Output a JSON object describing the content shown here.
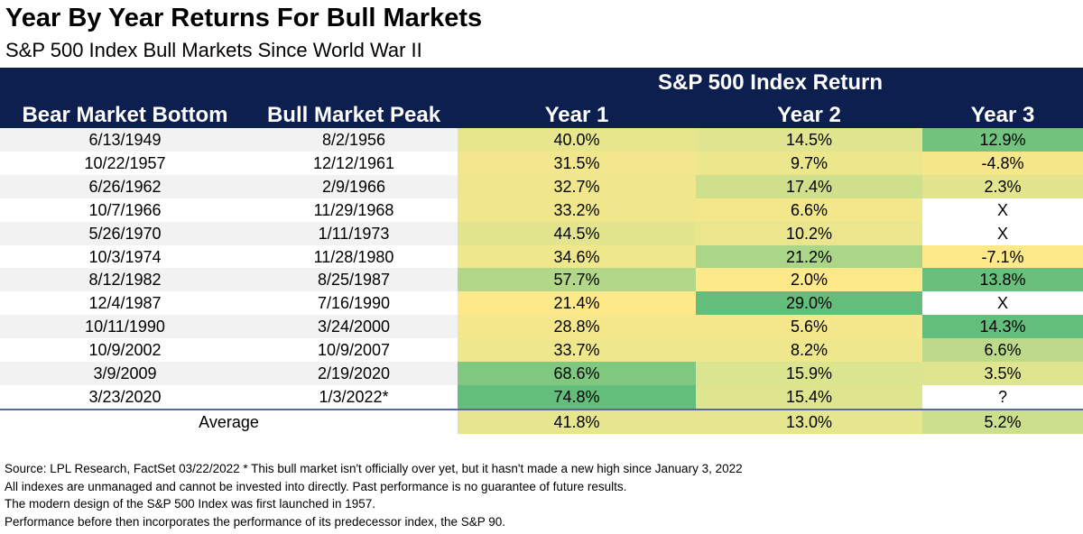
{
  "title": "Year By Year Returns For Bull Markets",
  "subtitle": "S&P 500 Index Bull Markets Since World War II",
  "header": {
    "group_label": "S&P 500 Index Return",
    "columns": [
      "Bear Market Bottom",
      "Bull Market Peak",
      "Year 1",
      "Year 2",
      "Year 3"
    ]
  },
  "chart_data": {
    "type": "table",
    "title": "Year By Year Returns For Bull Markets",
    "subtitle": "S&P 500 Index Bull Markets Since World War II",
    "columns": [
      "Bear Market Bottom",
      "Bull Market Peak",
      "Year 1",
      "Year 2",
      "Year 3"
    ],
    "rows": [
      {
        "bottom": "6/13/1949",
        "peak": "8/2/1956",
        "y1": "40.0%",
        "y2": "14.5%",
        "y3": "12.9%"
      },
      {
        "bottom": "10/22/1957",
        "peak": "12/12/1961",
        "y1": "31.5%",
        "y2": "9.7%",
        "y3": "-4.8%"
      },
      {
        "bottom": "6/26/1962",
        "peak": "2/9/1966",
        "y1": "32.7%",
        "y2": "17.4%",
        "y3": "2.3%"
      },
      {
        "bottom": "10/7/1966",
        "peak": "11/29/1968",
        "y1": "33.2%",
        "y2": "6.6%",
        "y3": "X"
      },
      {
        "bottom": "5/26/1970",
        "peak": "1/11/1973",
        "y1": "44.5%",
        "y2": "10.2%",
        "y3": "X"
      },
      {
        "bottom": "10/3/1974",
        "peak": "11/28/1980",
        "y1": "34.6%",
        "y2": "21.2%",
        "y3": "-7.1%"
      },
      {
        "bottom": "8/12/1982",
        "peak": "8/25/1987",
        "y1": "57.7%",
        "y2": "2.0%",
        "y3": "13.8%"
      },
      {
        "bottom": "12/4/1987",
        "peak": "7/16/1990",
        "y1": "21.4%",
        "y2": "29.0%",
        "y3": "X"
      },
      {
        "bottom": "10/11/1990",
        "peak": "3/24/2000",
        "y1": "28.8%",
        "y2": "5.6%",
        "y3": "14.3%"
      },
      {
        "bottom": "10/9/2002",
        "peak": "10/9/2007",
        "y1": "33.7%",
        "y2": "8.2%",
        "y3": "6.6%"
      },
      {
        "bottom": "3/9/2009",
        "peak": "2/19/2020",
        "y1": "68.6%",
        "y2": "15.9%",
        "y3": "3.5%"
      },
      {
        "bottom": "3/23/2020",
        "peak": "1/3/2022*",
        "y1": "74.8%",
        "y2": "15.4%",
        "y3": "?"
      }
    ],
    "average": {
      "label": "Average",
      "y1": "41.8%",
      "y2": "13.0%",
      "y3": "5.2%"
    }
  },
  "footnotes": [
    "Source: LPL Research, FactSet 03/22/2022  * This bull market isn't officially over yet, but it hasn't made a new high since January 3, 2022",
    "All indexes are unmanaged and cannot be invested into directly. Past performance is no guarantee of future results.",
    "The modern design of the S&P 500 Index was first launched in 1957.",
    "Performance before then incorporates the performance of its predecessor index, the S&P 90."
  ],
  "colors": {
    "header_bg": "#0c1f4f",
    "stripe_gray": "#f2f2f2",
    "heat_min": "#fde88a",
    "heat_mid": "#dfe58f",
    "heat_max": "#63be7b"
  }
}
